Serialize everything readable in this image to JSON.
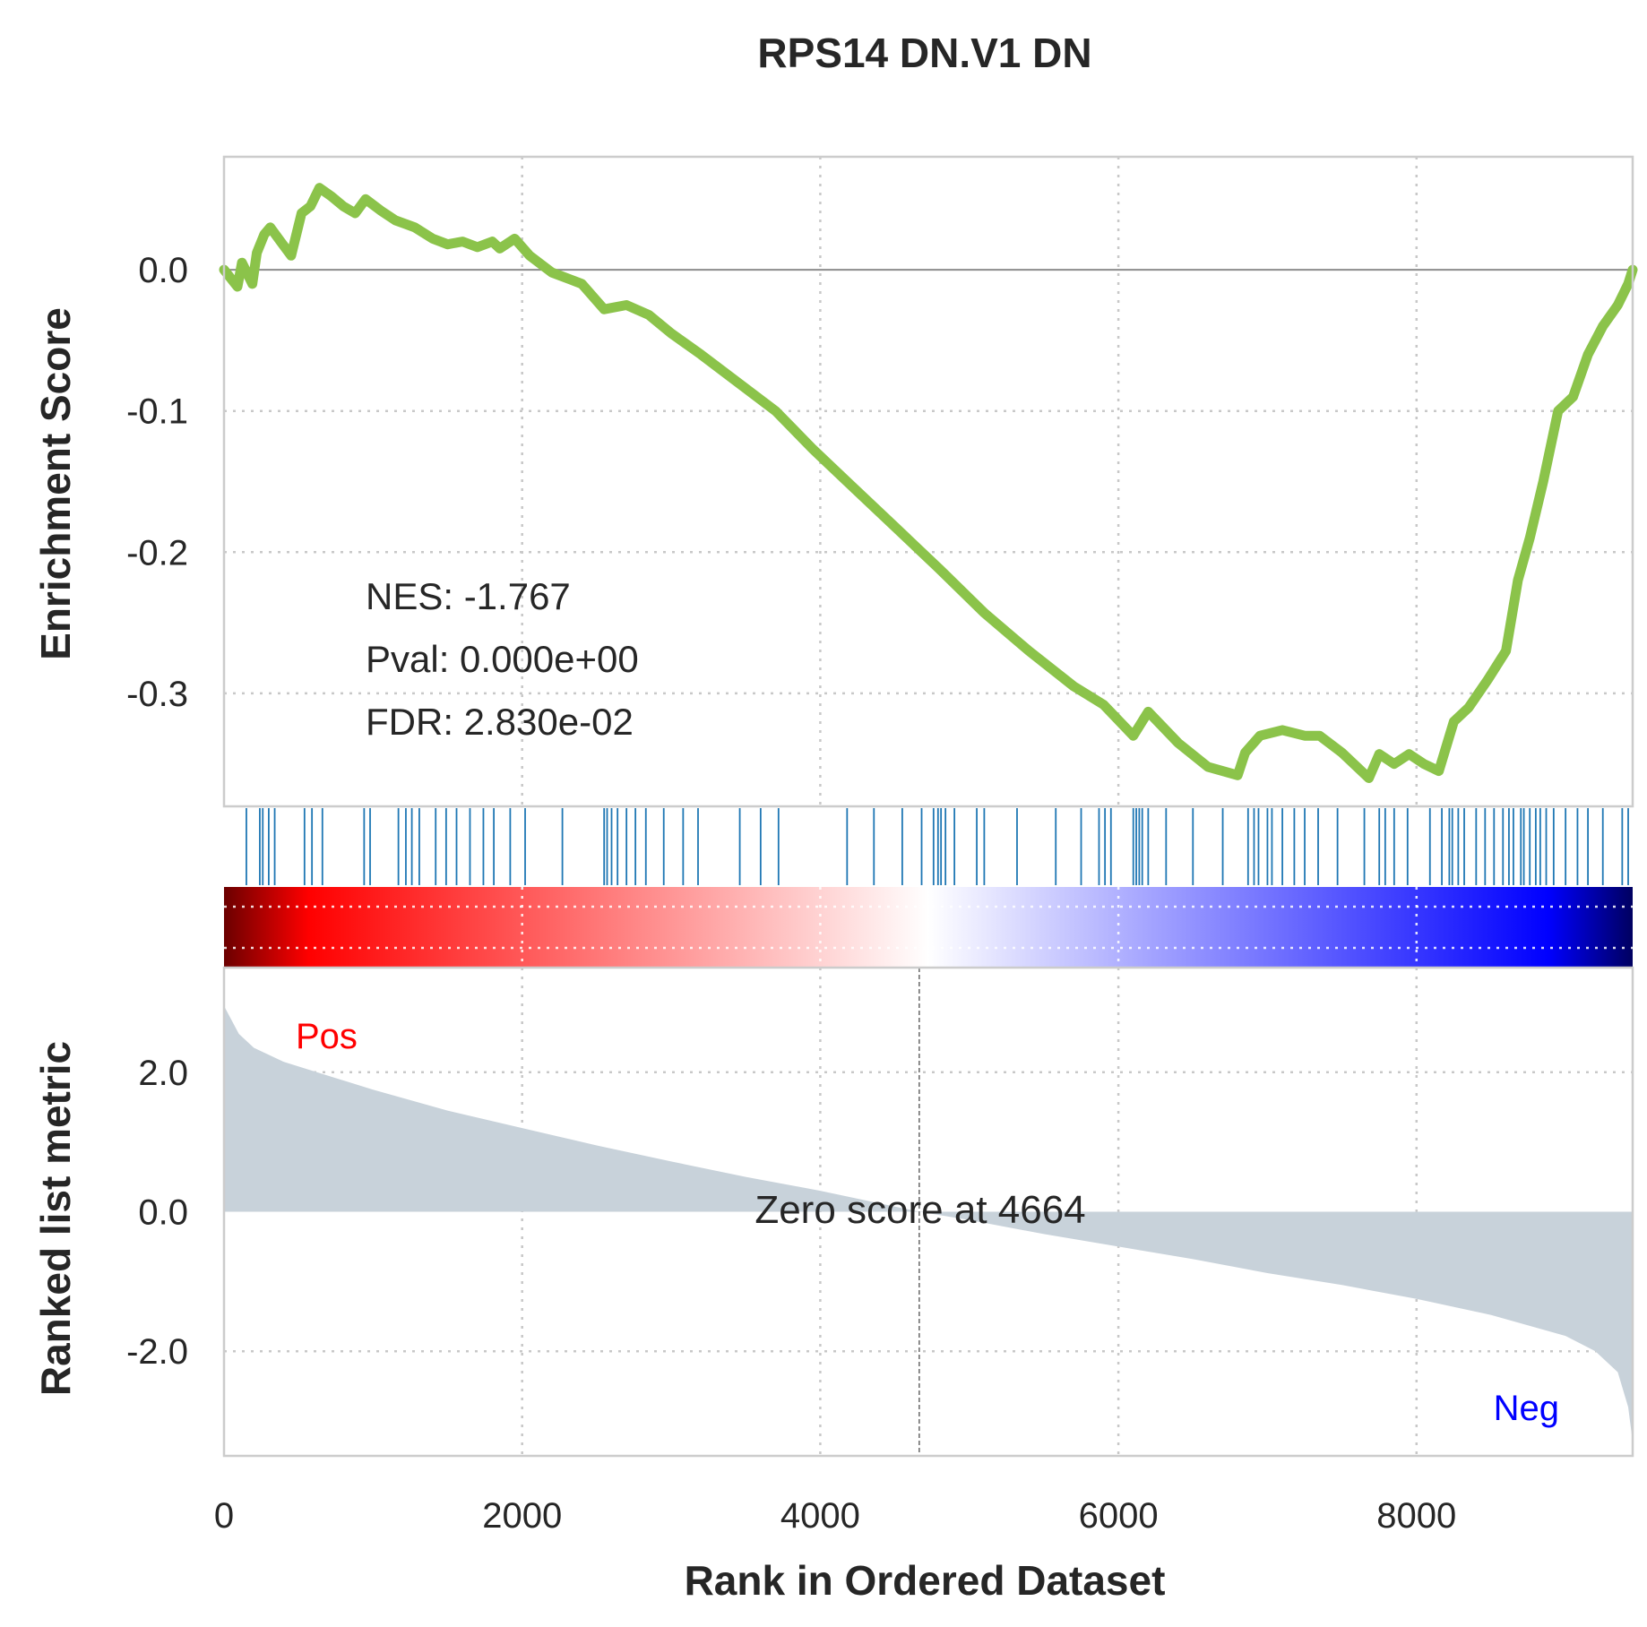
{
  "chart_data": {
    "type": "line",
    "title": "RPS14 DN.V1 DN",
    "xlabel": "Rank in Ordered Dataset",
    "xlim": [
      0,
      9450
    ],
    "x_ticks": [
      "0",
      "2000",
      "4000",
      "6000",
      "8000"
    ],
    "x_tick_values": [
      0,
      2000,
      4000,
      6000,
      8000
    ],
    "grid": true,
    "enrichment": {
      "ylabel": "Enrichment Score",
      "ylim": [
        -0.38,
        0.08
      ],
      "y_ticks": [
        "0.0",
        "-0.1",
        "-0.2",
        "-0.3"
      ],
      "y_tick_values": [
        0.0,
        -0.1,
        -0.2,
        -0.3
      ],
      "line_color": "#8bc34a",
      "points": [
        [
          0,
          0.0
        ],
        [
          90,
          -0.012
        ],
        [
          120,
          0.005
        ],
        [
          190,
          -0.01
        ],
        [
          220,
          0.012
        ],
        [
          270,
          0.025
        ],
        [
          310,
          0.03
        ],
        [
          380,
          0.02
        ],
        [
          450,
          0.01
        ],
        [
          520,
          0.04
        ],
        [
          580,
          0.045
        ],
        [
          640,
          0.058
        ],
        [
          720,
          0.052
        ],
        [
          800,
          0.045
        ],
        [
          880,
          0.04
        ],
        [
          950,
          0.05
        ],
        [
          1050,
          0.042
        ],
        [
          1150,
          0.035
        ],
        [
          1280,
          0.03
        ],
        [
          1400,
          0.022
        ],
        [
          1500,
          0.018
        ],
        [
          1600,
          0.02
        ],
        [
          1700,
          0.016
        ],
        [
          1800,
          0.02
        ],
        [
          1850,
          0.015
        ],
        [
          1950,
          0.022
        ],
        [
          2050,
          0.01
        ],
        [
          2200,
          -0.002
        ],
        [
          2400,
          -0.01
        ],
        [
          2550,
          -0.028
        ],
        [
          2700,
          -0.025
        ],
        [
          2850,
          -0.032
        ],
        [
          3000,
          -0.045
        ],
        [
          3200,
          -0.06
        ],
        [
          3450,
          -0.08
        ],
        [
          3700,
          -0.1
        ],
        [
          3950,
          -0.127
        ],
        [
          4200,
          -0.152
        ],
        [
          4500,
          -0.182
        ],
        [
          4800,
          -0.212
        ],
        [
          5100,
          -0.243
        ],
        [
          5400,
          -0.27
        ],
        [
          5700,
          -0.295
        ],
        [
          5900,
          -0.308
        ],
        [
          6100,
          -0.33
        ],
        [
          6200,
          -0.313
        ],
        [
          6400,
          -0.335
        ],
        [
          6600,
          -0.352
        ],
        [
          6800,
          -0.358
        ],
        [
          6850,
          -0.342
        ],
        [
          6950,
          -0.33
        ],
        [
          7100,
          -0.326
        ],
        [
          7250,
          -0.33
        ],
        [
          7350,
          -0.33
        ],
        [
          7500,
          -0.342
        ],
        [
          7680,
          -0.36
        ],
        [
          7750,
          -0.343
        ],
        [
          7850,
          -0.35
        ],
        [
          7950,
          -0.343
        ],
        [
          8050,
          -0.35
        ],
        [
          8150,
          -0.355
        ],
        [
          8250,
          -0.32
        ],
        [
          8350,
          -0.31
        ],
        [
          8480,
          -0.29
        ],
        [
          8600,
          -0.27
        ],
        [
          8680,
          -0.22
        ],
        [
          8760,
          -0.19
        ],
        [
          8850,
          -0.15
        ],
        [
          8950,
          -0.1
        ],
        [
          9050,
          -0.09
        ],
        [
          9150,
          -0.06
        ],
        [
          9250,
          -0.04
        ],
        [
          9350,
          -0.025
        ],
        [
          9420,
          -0.01
        ],
        [
          9450,
          0.0
        ]
      ],
      "stats": {
        "nes": "NES: -1.767",
        "pval": "Pval: 0.000e+00",
        "fdr": "FDR: 2.830e-02"
      }
    },
    "hits": {
      "color": "#1f77b4",
      "positions": [
        150,
        240,
        260,
        300,
        340,
        540,
        590,
        660,
        940,
        980,
        1170,
        1220,
        1260,
        1310,
        1420,
        1490,
        1560,
        1650,
        1740,
        1810,
        1920,
        2020,
        2270,
        2550,
        2570,
        2600,
        2640,
        2700,
        2760,
        2830,
        2950,
        3080,
        3180,
        3460,
        3600,
        3720,
        4180,
        4360,
        4550,
        4680,
        4760,
        4790,
        4810,
        4840,
        4900,
        5050,
        5100,
        5320,
        5580,
        5750,
        5870,
        5910,
        5950,
        6100,
        6120,
        6140,
        6160,
        6200,
        6320,
        6500,
        6700,
        6870,
        6910,
        6940,
        7000,
        7030,
        7100,
        7180,
        7250,
        7340,
        7470,
        7650,
        7750,
        7790,
        7850,
        7940,
        8090,
        8170,
        8220,
        8240,
        8280,
        8320,
        8400,
        8460,
        8520,
        8580,
        8620,
        8650,
        8700,
        8720,
        8760,
        8800,
        8830,
        8870,
        8920,
        9000,
        9080,
        9150,
        9250,
        9380,
        9420
      ]
    },
    "ranked_metric": {
      "ylabel": "Ranked list metric",
      "ylim": [
        -3.5,
        3.5
      ],
      "y_ticks": [
        "2.0",
        "0.0",
        "-2.0"
      ],
      "y_tick_values": [
        2.0,
        0.0,
        -2.0
      ],
      "fill_color": "#c8d2da",
      "pos_label": "Pos",
      "neg_label": "Neg",
      "pos_color": "#ff0000",
      "neg_color": "#0000ff",
      "zero_cross": 4664,
      "zero_label": "Zero score at 4664",
      "points": [
        [
          0,
          2.95
        ],
        [
          50,
          2.75
        ],
        [
          100,
          2.55
        ],
        [
          200,
          2.35
        ],
        [
          400,
          2.15
        ],
        [
          700,
          1.95
        ],
        [
          1000,
          1.75
        ],
        [
          1500,
          1.45
        ],
        [
          2000,
          1.2
        ],
        [
          2500,
          0.95
        ],
        [
          3000,
          0.72
        ],
        [
          3500,
          0.5
        ],
        [
          4000,
          0.3
        ],
        [
          4664,
          0.0
        ],
        [
          5000,
          -0.12
        ],
        [
          5500,
          -0.32
        ],
        [
          6000,
          -0.5
        ],
        [
          6500,
          -0.68
        ],
        [
          7000,
          -0.88
        ],
        [
          7500,
          -1.05
        ],
        [
          8000,
          -1.25
        ],
        [
          8500,
          -1.48
        ],
        [
          9000,
          -1.78
        ],
        [
          9200,
          -2.0
        ],
        [
          9350,
          -2.3
        ],
        [
          9420,
          -2.8
        ],
        [
          9450,
          -3.3
        ]
      ]
    },
    "colorbar": {
      "stops": [
        "#6b0000",
        "#ff0000",
        "#ffffff",
        "#0000ff",
        "#000060"
      ]
    }
  }
}
